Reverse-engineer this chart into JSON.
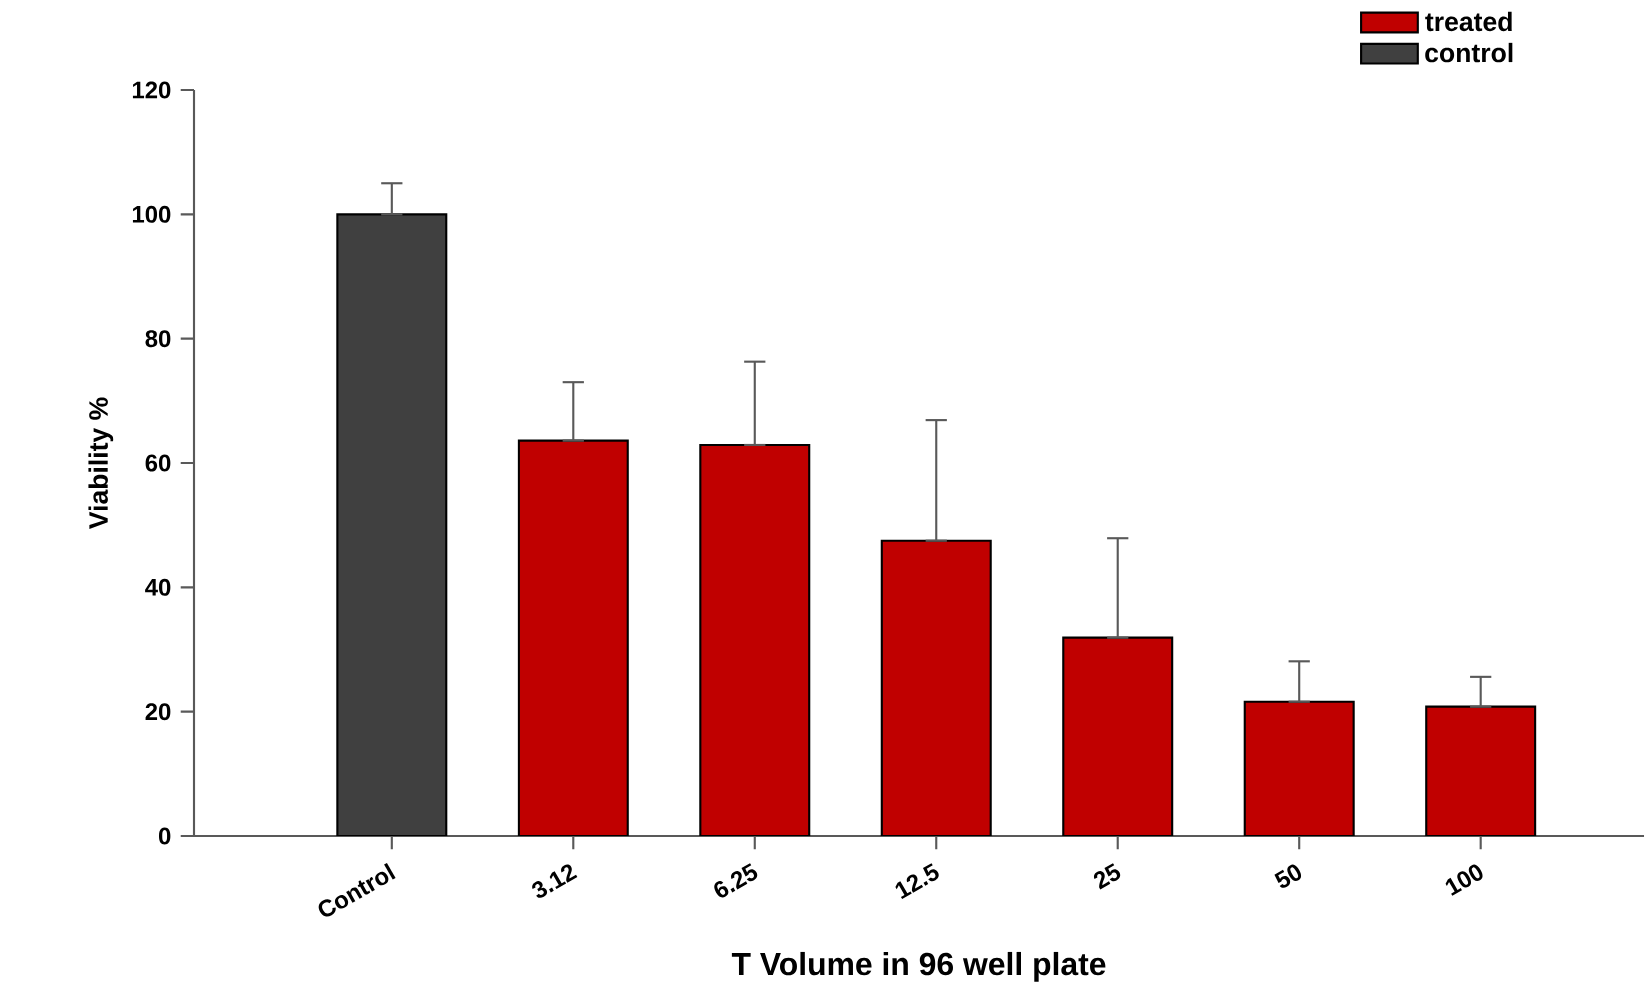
{
  "chart_data": {
    "type": "bar",
    "xlabel": "T  Volume in 96 well plate",
    "ylabel": "Viability %",
    "categories": [
      "Control",
      "3.12",
      "6.25",
      "12.5",
      "25",
      "50",
      "100"
    ],
    "series": [
      {
        "name": "treated",
        "color": "#c00000",
        "values": [
          null,
          63.6,
          62.9,
          47.5,
          31.9,
          21.6,
          20.8
        ],
        "errors": [
          null,
          [
            63.6,
            73.0
          ],
          [
            62.9,
            76.3
          ],
          [
            47.5,
            66.9
          ],
          [
            31.9,
            47.9
          ],
          [
            21.6,
            28.1
          ],
          [
            20.8,
            25.6
          ]
        ]
      },
      {
        "name": "control",
        "color": "#404040",
        "values": [
          100,
          null,
          null,
          null,
          null,
          null,
          null
        ],
        "errors": [
          [
            100,
            105
          ],
          null,
          null,
          null,
          null,
          null,
          null
        ]
      }
    ],
    "ylim": [
      0,
      120
    ],
    "yticks": [
      0,
      20,
      40,
      60,
      80,
      100,
      120
    ],
    "grid": false,
    "legend": "top right"
  }
}
